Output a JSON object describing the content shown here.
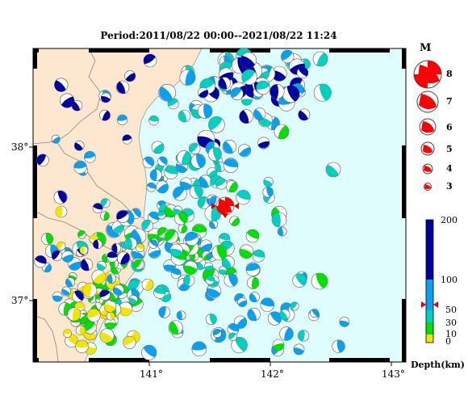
{
  "title": "Period:2011/08/22 00:00--2021/08/22 11:24",
  "axes": {
    "lat_labels": [
      "38°",
      "37°"
    ],
    "lon_labels": [
      "141°",
      "142°",
      "143°"
    ]
  },
  "magnitude_legend": {
    "heading": "M",
    "levels": [
      "8",
      "7",
      "6",
      "5",
      "4",
      "3"
    ]
  },
  "depth_legend": {
    "unit_label": "Depth(km)",
    "ticks": [
      "200",
      "100",
      "50",
      "30",
      "10",
      "0"
    ],
    "colors": {
      "d0_10": "#f2e600",
      "d10_30": "#00e000",
      "d30_50": "#00d0c0",
      "d50_100": "#0aa0f0",
      "d100_200": "#0000a0"
    }
  },
  "colors": {
    "land": "#fde7cf",
    "sea": "#e0fdfd",
    "highlight_event": "#ff0000"
  }
}
